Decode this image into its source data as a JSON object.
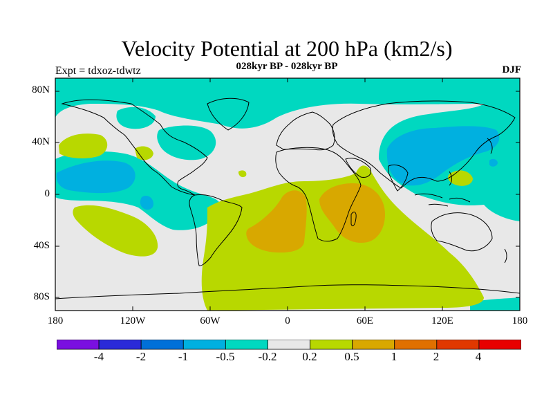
{
  "title": "Velocity Potential at 200 hPa (km2/s)",
  "subtitle": "028kyr BP - 028kyr BP",
  "left_label": "Expt = tdxoz-tdwtz",
  "right_label": "DJF",
  "map": {
    "projection": "cylindrical equidistant",
    "lon_range": [
      -180,
      180
    ],
    "lat_range": [
      -90,
      90
    ],
    "y_ticks": [
      "80N",
      "40N",
      "0",
      "40S",
      "80S"
    ],
    "x_ticks": [
      "180",
      "120W",
      "60W",
      "0",
      "60E",
      "120E",
      "180"
    ],
    "background_color": "#e8e8e8",
    "coastline_color": "#000000"
  },
  "colorbar": {
    "labels": [
      "-4",
      "-2",
      "-1",
      "-0.5",
      "-0.2",
      "0.2",
      "0.5",
      "1",
      "2",
      "4"
    ],
    "colors": [
      "#7a10e0",
      "#2a2ad8",
      "#0070d8",
      "#00b0e0",
      "#00d8c0",
      "#e8e8e8",
      "#b8d800",
      "#d8a800",
      "#e07000",
      "#e03800",
      "#e80000"
    ]
  }
}
